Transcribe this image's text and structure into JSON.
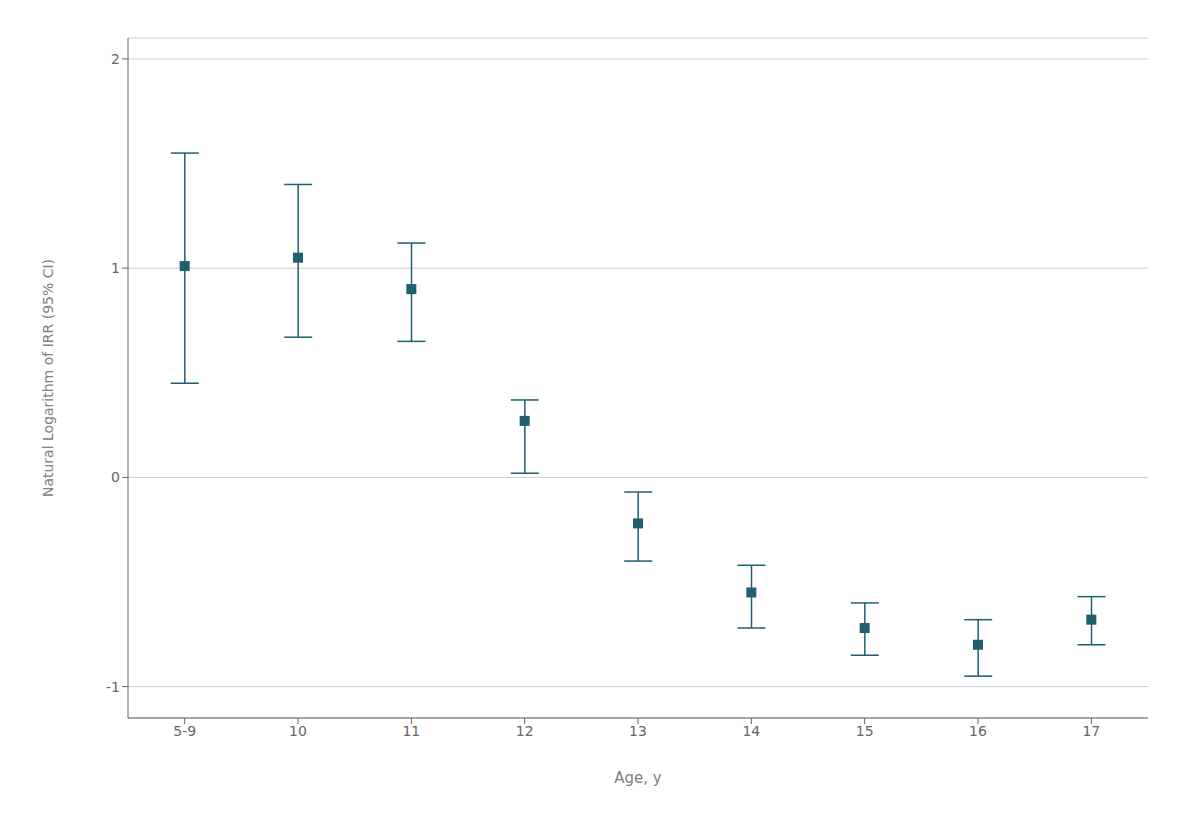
{
  "chart_data": {
    "type": "scatter",
    "categories": [
      "5-9",
      "10",
      "11",
      "12",
      "13",
      "14",
      "15",
      "16",
      "17"
    ],
    "values": [
      1.01,
      1.05,
      0.9,
      0.27,
      -0.22,
      -0.55,
      -0.72,
      -0.8,
      -0.68
    ],
    "ci_upper": [
      1.55,
      1.4,
      1.12,
      0.37,
      -0.07,
      -0.42,
      -0.6,
      -0.68,
      -0.57
    ],
    "ci_lower": [
      0.45,
      0.67,
      0.65,
      0.02,
      -0.4,
      -0.72,
      -0.85,
      -0.95,
      -0.8
    ],
    "color": "#1f5f6e",
    "marker": "square",
    "xlabel": "Age, y",
    "ylabel": "Natural Logarithm of IRR (95% CI)",
    "ylim": [
      -1.15,
      2.1
    ],
    "yticks": [
      -1,
      0,
      1,
      2
    ],
    "grid": true
  }
}
